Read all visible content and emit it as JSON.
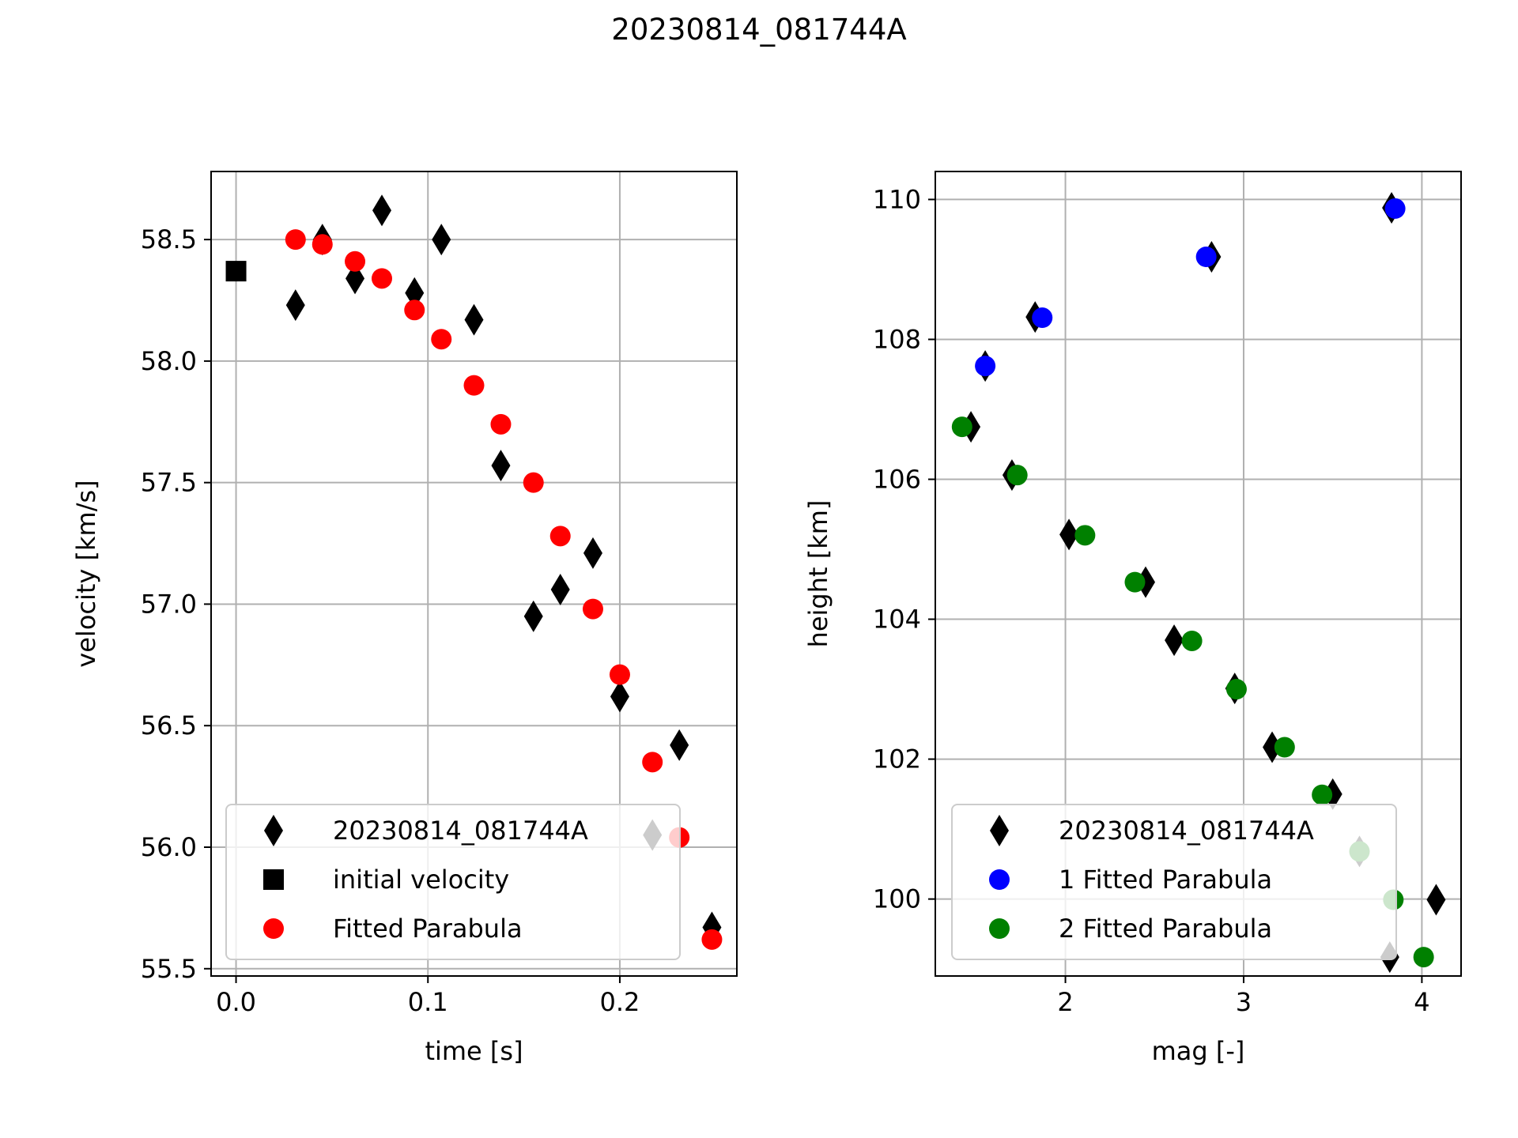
{
  "figure": {
    "title": "20230814_081744A"
  },
  "chart_data": [
    {
      "type": "scatter",
      "xlabel": "time [s]",
      "ylabel": "velocity [km/s]",
      "xlim": [
        -0.013,
        0.261
      ],
      "ylim": [
        55.47,
        58.78
      ],
      "xticks": [
        "0.0",
        "0.1",
        "0.2"
      ],
      "xtick_values": [
        0.0,
        0.1,
        0.2
      ],
      "yticks": [
        "55.5",
        "56.0",
        "56.5",
        "57.0",
        "57.5",
        "58.0",
        "58.5"
      ],
      "ytick_values": [
        55.5,
        56.0,
        56.5,
        57.0,
        57.5,
        58.0,
        58.5
      ],
      "grid": true,
      "legend_position": "lower-left",
      "series": [
        {
          "name": "20230814_081744A",
          "marker": "diamond",
          "color": "#000000",
          "x": [
            0.031,
            0.045,
            0.062,
            0.076,
            0.093,
            0.107,
            0.124,
            0.138,
            0.155,
            0.169,
            0.186,
            0.2,
            0.217,
            0.231,
            0.248
          ],
          "y": [
            58.23,
            58.5,
            58.34,
            58.62,
            58.28,
            58.5,
            58.17,
            57.57,
            56.95,
            57.06,
            57.21,
            56.62,
            56.05,
            56.42,
            55.67
          ]
        },
        {
          "name": "initial velocity",
          "marker": "square",
          "color": "#000000",
          "x": [
            0.0
          ],
          "y": [
            58.37
          ]
        },
        {
          "name": "Fitted Parabula",
          "marker": "circle",
          "color": "#ff0000",
          "x": [
            0.031,
            0.045,
            0.062,
            0.076,
            0.093,
            0.107,
            0.124,
            0.138,
            0.155,
            0.169,
            0.186,
            0.2,
            0.217,
            0.231,
            0.248
          ],
          "y": [
            58.5,
            58.48,
            58.41,
            58.34,
            58.21,
            58.09,
            57.9,
            57.74,
            57.5,
            57.28,
            56.98,
            56.71,
            56.35,
            56.04,
            55.62
          ]
        }
      ]
    },
    {
      "type": "scatter",
      "xlabel": "mag [-]",
      "ylabel": "height [km]",
      "xlim": [
        1.27,
        4.22
      ],
      "ylim": [
        98.9,
        110.4
      ],
      "xticks": [
        "2",
        "3",
        "4"
      ],
      "xtick_values": [
        2,
        3,
        4
      ],
      "yticks": [
        "100",
        "102",
        "104",
        "106",
        "108",
        "110"
      ],
      "ytick_values": [
        100,
        102,
        104,
        106,
        108,
        110
      ],
      "grid": true,
      "legend_position": "lower-left",
      "series": [
        {
          "name": "20230814_081744A",
          "marker": "diamond",
          "color": "#000000",
          "x": [
            1.47,
            1.55,
            1.7,
            1.83,
            2.02,
            2.45,
            2.61,
            2.82,
            2.95,
            3.16,
            3.5,
            3.65,
            3.82,
            3.83,
            4.08
          ],
          "y": [
            106.75,
            107.62,
            106.06,
            108.32,
            105.21,
            104.53,
            103.7,
            109.18,
            103.01,
            102.17,
            101.5,
            100.68,
            99.17,
            109.88,
            99.99
          ]
        },
        {
          "name": "1 Fitted Parabula",
          "marker": "circle",
          "color": "#0000ff",
          "x": [
            1.55,
            1.87,
            2.79,
            3.85
          ],
          "y": [
            107.62,
            108.31,
            109.18,
            109.87
          ]
        },
        {
          "name": "2 Fitted Parabula",
          "marker": "circle",
          "color": "#008000",
          "x": [
            1.42,
            1.73,
            2.11,
            2.39,
            2.71,
            2.96,
            3.23,
            3.44,
            3.65,
            3.84,
            4.01
          ],
          "y": [
            106.75,
            106.06,
            105.2,
            104.53,
            103.69,
            103.0,
            102.17,
            101.49,
            100.68,
            99.99,
            99.17
          ]
        }
      ]
    }
  ]
}
